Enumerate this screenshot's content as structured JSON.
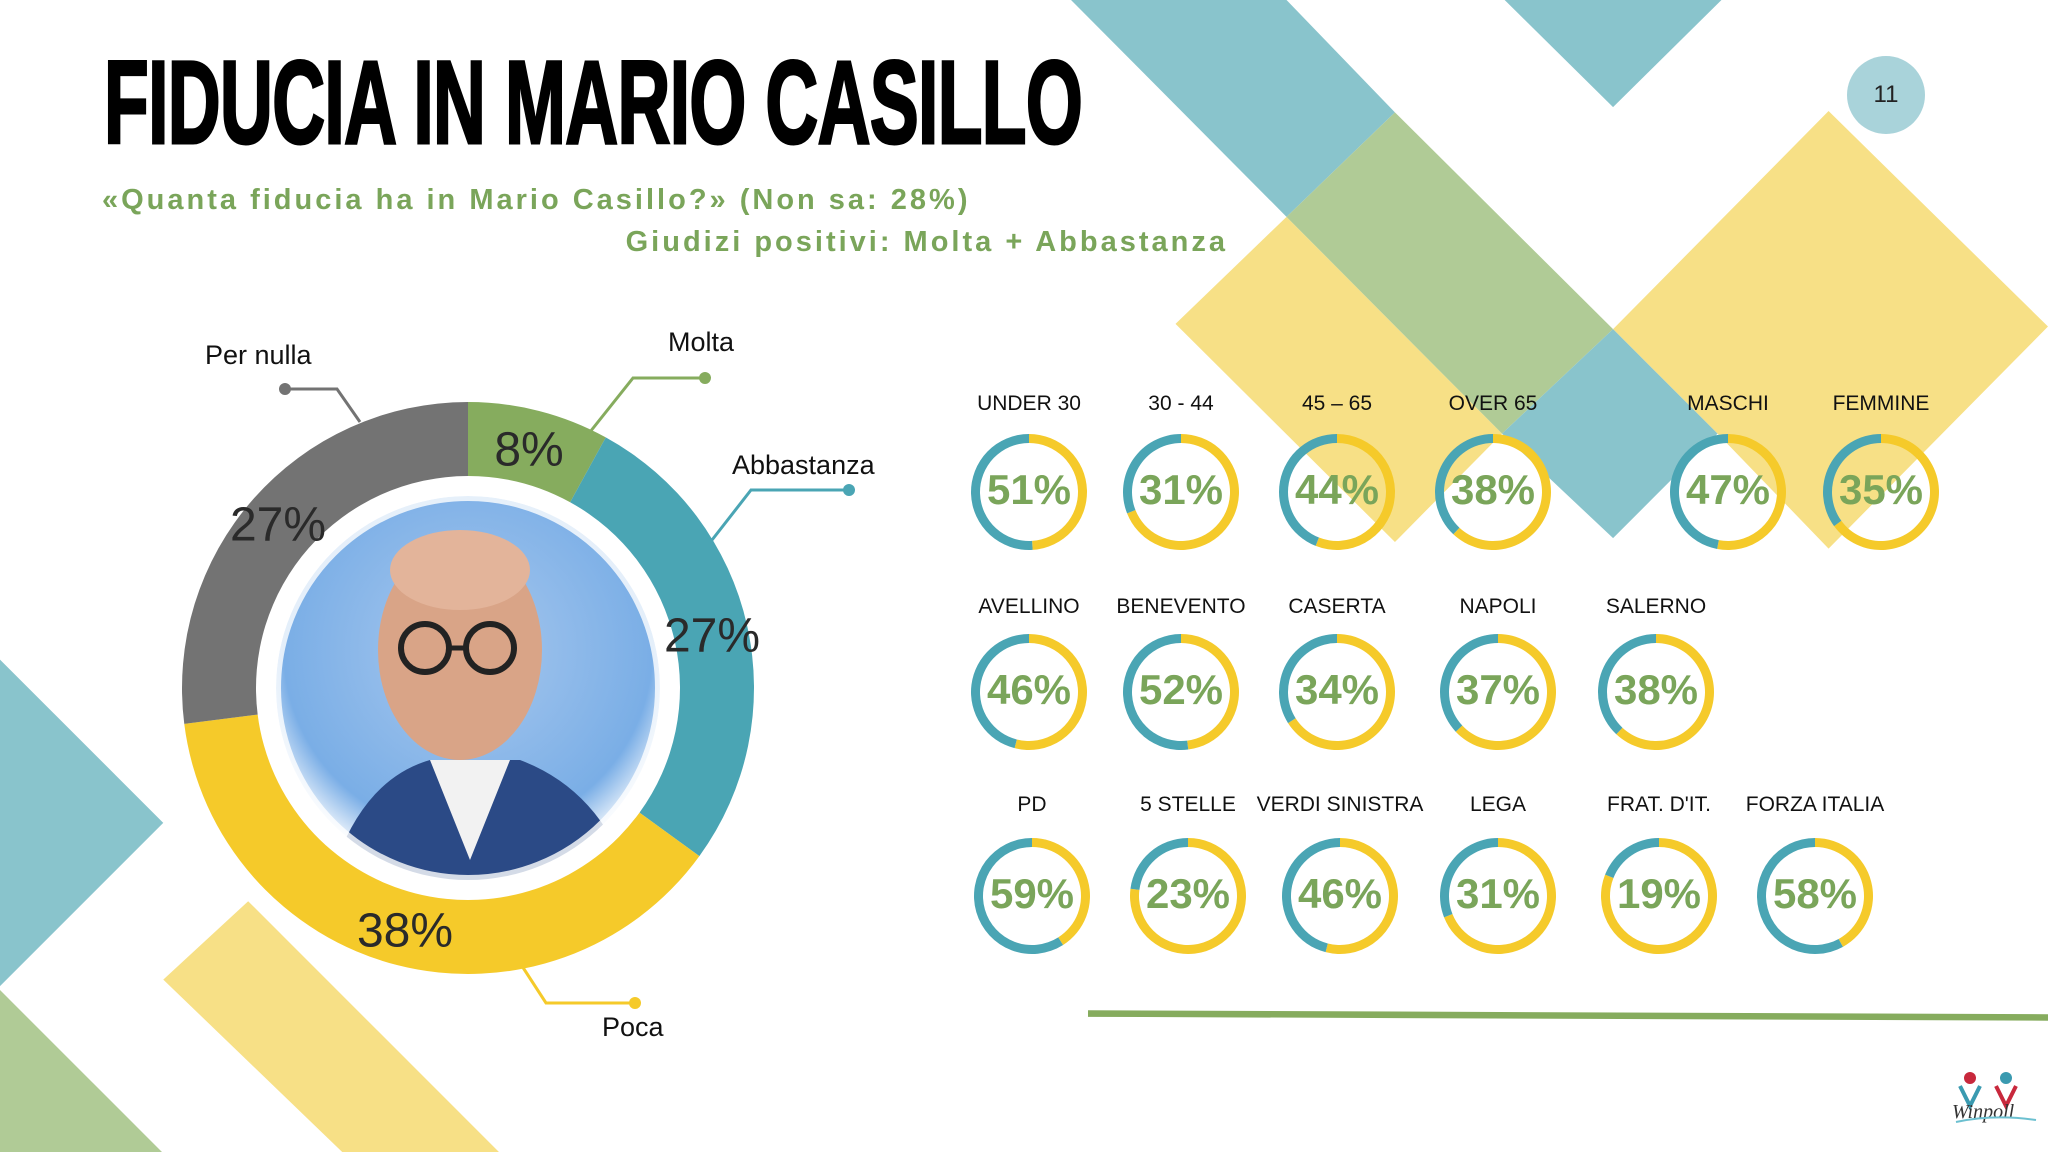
{
  "header": {
    "title": "FIDUCIA IN MARIO CASILLO",
    "page_number": "11",
    "subtitle_line1": "«Quanta fiducia ha in Mario Casillo?» (Non sa: 28%)",
    "subtitle_line2": "Giudizi positivi: Molta + Abbastanza"
  },
  "colors": {
    "green": "#86ac5e",
    "teal": "#4aa5b4",
    "yellow": "#f5ca2a",
    "gray": "#737373",
    "text_green": "#7aa55a"
  },
  "chart_data": [
    {
      "type": "pie",
      "donut": true,
      "categories": [
        "Molta",
        "Abbastanza",
        "Poca",
        "Per nulla"
      ],
      "values": [
        8,
        27,
        38,
        27
      ],
      "labels": [
        "8%",
        "27%",
        "38%",
        "27%"
      ],
      "colors": [
        "#86ac5e",
        "#4aa5b4",
        "#f5ca2a",
        "#737373"
      ]
    },
    {
      "type": "pie",
      "donut": true,
      "description_shown": "Giudizi positivi: Molta + Abbastanza",
      "groups": [
        {
          "items": [
            {
              "label": "UNDER 30",
              "value": 51,
              "text": "51%"
            },
            {
              "label": "30 - 44",
              "value": 31,
              "text": "31%"
            },
            {
              "label": "45 – 65",
              "value": 44,
              "text": "44%"
            },
            {
              "label": "OVER 65",
              "value": 38,
              "text": "38%"
            },
            {
              "label": "MASCHI",
              "value": 47,
              "text": "47%"
            },
            {
              "label": "FEMMINE",
              "value": 35,
              "text": "35%"
            }
          ]
        },
        {
          "items": [
            {
              "label": "AVELLINO",
              "value": 46,
              "text": "46%"
            },
            {
              "label": "BENEVENTO",
              "value": 52,
              "text": "52%"
            },
            {
              "label": "CASERTA",
              "value": 34,
              "text": "34%"
            },
            {
              "label": "NAPOLI",
              "value": 37,
              "text": "37%"
            },
            {
              "label": "SALERNO",
              "value": 38,
              "text": "38%"
            }
          ]
        },
        {
          "items": [
            {
              "label": "PD",
              "value": 59,
              "text": "59%"
            },
            {
              "label": "5 STELLE",
              "value": 23,
              "text": "23%"
            },
            {
              "label": "VERDI SINISTRA",
              "value": 46,
              "text": "46%"
            },
            {
              "label": "LEGA",
              "value": 31,
              "text": "31%"
            },
            {
              "label": "FRAT. D'IT.",
              "value": 19,
              "text": "19%"
            },
            {
              "label": "FORZA ITALIA",
              "value": 58,
              "text": "58%"
            }
          ]
        }
      ]
    }
  ],
  "logo": {
    "text": "Winpoll"
  }
}
